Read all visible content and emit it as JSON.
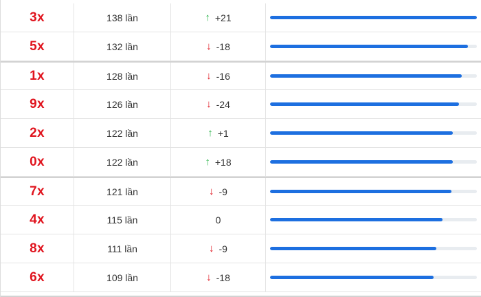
{
  "rows": [
    {
      "number": "3x",
      "count": "138 lần",
      "direction": "up",
      "change": "+21",
      "fill": 1.0
    },
    {
      "number": "5x",
      "count": "132 lần",
      "direction": "down",
      "change": "-18",
      "fill": 0.957
    },
    {
      "number": "1x",
      "count": "128 lần",
      "direction": "down",
      "change": "-16",
      "fill": 0.928
    },
    {
      "number": "9x",
      "count": "126 lần",
      "direction": "down",
      "change": "-24",
      "fill": 0.913
    },
    {
      "number": "2x",
      "count": "122 lần",
      "direction": "up",
      "change": "+1",
      "fill": 0.884
    },
    {
      "number": "0x",
      "count": "122 lần",
      "direction": "up",
      "change": "+18",
      "fill": 0.884
    },
    {
      "number": "7x",
      "count": "121 lần",
      "direction": "down",
      "change": "-9",
      "fill": 0.877
    },
    {
      "number": "4x",
      "count": "115 lần",
      "direction": "none",
      "change": "0",
      "fill": 0.833
    },
    {
      "number": "8x",
      "count": "111 lần",
      "direction": "down",
      "change": "-9",
      "fill": 0.804
    },
    {
      "number": "6x",
      "count": "109 lần",
      "direction": "down",
      "change": "-18",
      "fill": 0.79
    }
  ],
  "icons": {
    "up": "arrow-up-icon",
    "down": "arrow-down-icon"
  },
  "colors": {
    "number": "#e0141e",
    "up_arrow": "#2ab34a",
    "down_arrow": "#e0141e",
    "bar_fill": "#1d6fe0",
    "bar_track": "#e8ecf0"
  }
}
